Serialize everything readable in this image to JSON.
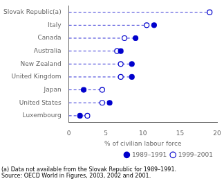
{
  "chart_data": {
    "type": "dot",
    "categories": [
      "Slovak Republic(a)",
      "Italy",
      "Canada",
      "Australia",
      "New Zealand",
      "United Kingdom",
      "Japan",
      "United States",
      "Luxembourg"
    ],
    "series": [
      {
        "name": "1989–1991",
        "color": "#0000cc",
        "marker": "filled_circle",
        "values": [
          null,
          11.5,
          9.0,
          7.0,
          8.5,
          8.5,
          2.0,
          5.5,
          1.5
        ]
      },
      {
        "name": "1999–2001",
        "color": "#0000cc",
        "marker": "open_circle",
        "values": [
          19.0,
          10.5,
          7.5,
          6.5,
          7.0,
          7.0,
          4.5,
          4.5,
          2.5
        ]
      }
    ],
    "xlabel": "% of civilian labour force",
    "xlim": [
      0,
      20
    ],
    "xticks": [
      0,
      5,
      10,
      15,
      20
    ],
    "line_style": "dashed",
    "grid": false,
    "legend": "lower right",
    "annotations": [
      "(a) Data not available from the Slovak Republic for 1989–1991.",
      "Source: OECD World in Figures, 2003, 2002 and 2001."
    ]
  }
}
